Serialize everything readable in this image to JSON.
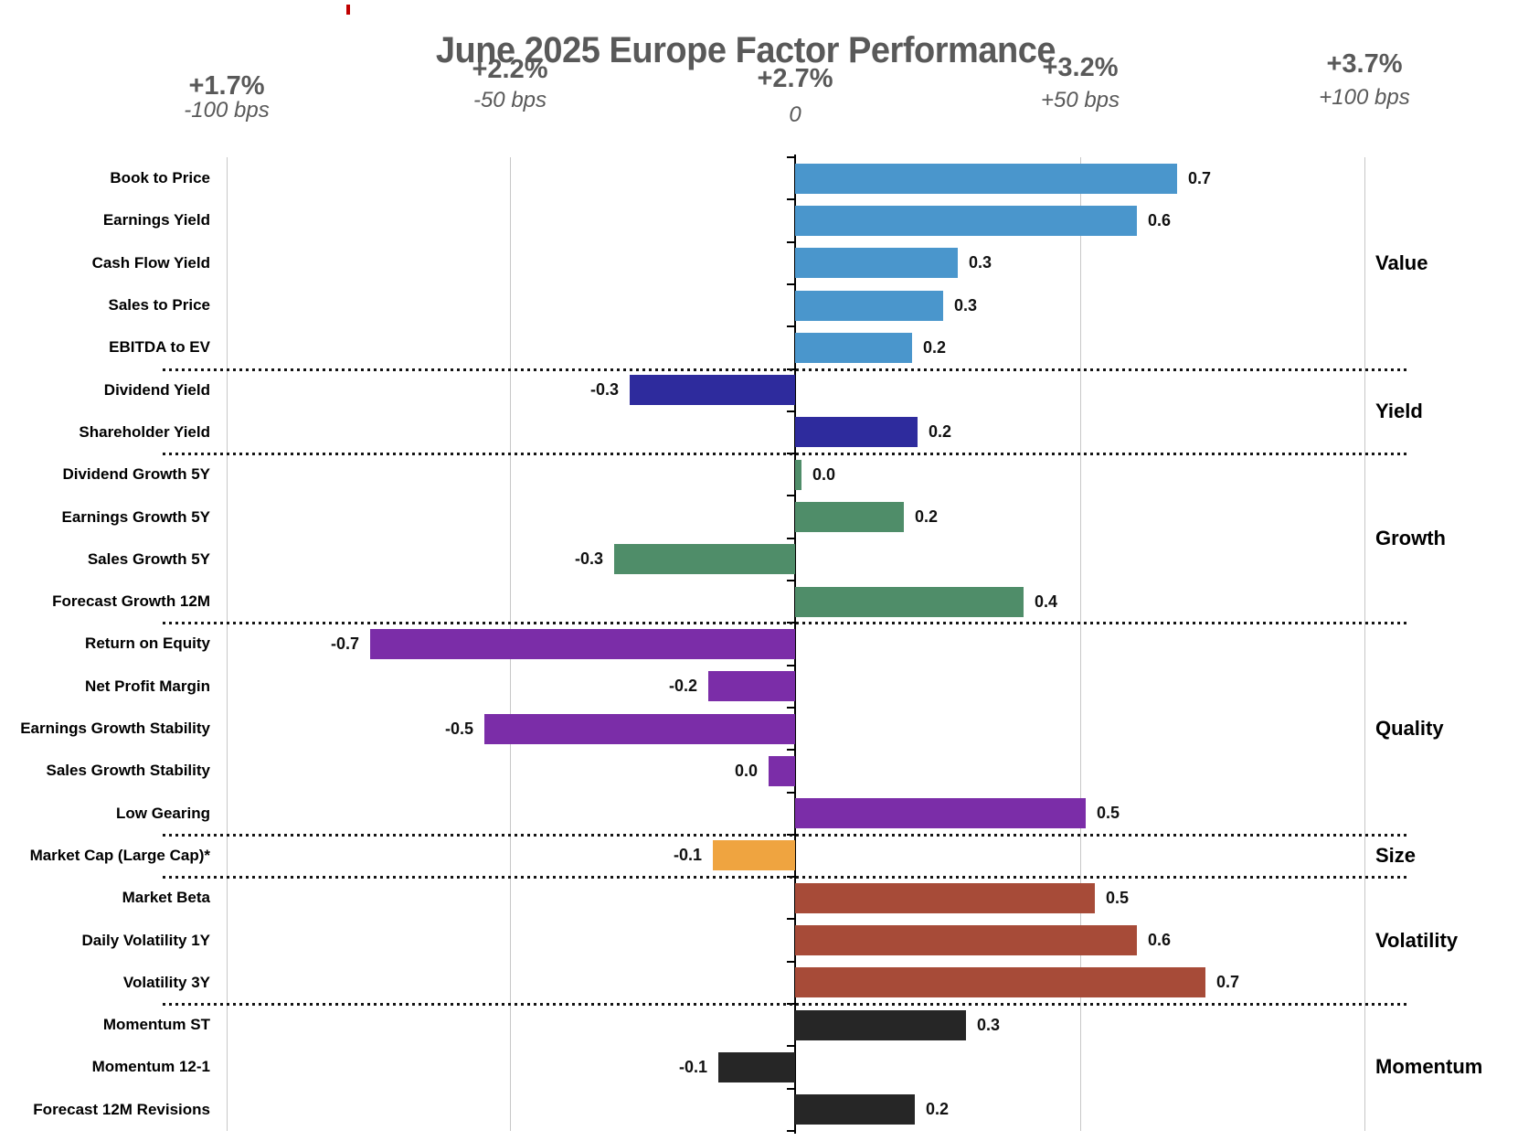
{
  "title": "June 2025 Europe Factor Performance",
  "axis_header": {
    "ticks": [
      {
        "pct": "+1.7%",
        "bps": "-100 bps"
      },
      {
        "pct": "+2.2%",
        "bps": "-50 bps"
      },
      {
        "pct": "+2.7%",
        "bps": "0"
      },
      {
        "pct": "+3.2%",
        "bps": "+50 bps"
      },
      {
        "pct": "+3.7%",
        "bps": "+100 bps"
      }
    ]
  },
  "chart_data": {
    "type": "bar",
    "orientation": "horizontal",
    "title": "June 2025 Europe Factor Performance",
    "x_axis": {
      "tick_labels_pct": [
        "+1.7%",
        "+2.2%",
        "+2.7%",
        "+3.2%",
        "+3.7%"
      ],
      "tick_labels_bps": [
        "-100 bps",
        "-50 bps",
        "0",
        "+50 bps",
        "+100 bps"
      ],
      "range_bps": [
        -100,
        100
      ],
      "gridlines": true
    },
    "value_unit": "percent active return, labels shown to 1 decimal",
    "groups": [
      {
        "category": "Value",
        "color": "#4A96CC",
        "factors": [
          {
            "name": "Book to Price",
            "value": 0.67,
            "display": "0.7"
          },
          {
            "name": "Earnings Yield",
            "value": 0.6,
            "display": "0.6"
          },
          {
            "name": "Cash Flow Yield",
            "value": 0.285,
            "display": "0.3"
          },
          {
            "name": "Sales to Price",
            "value": 0.26,
            "display": "0.3"
          },
          {
            "name": "EBITDA to EV",
            "value": 0.205,
            "display": "0.2"
          }
        ]
      },
      {
        "category": "Yield",
        "color": "#2E2B9D",
        "factors": [
          {
            "name": "Dividend Yield",
            "value": -0.29,
            "display": "-0.3"
          },
          {
            "name": "Shareholder Yield",
            "value": 0.215,
            "display": "0.2"
          }
        ]
      },
      {
        "category": "Growth",
        "color": "#4F8D69",
        "factors": [
          {
            "name": "Dividend Growth 5Y",
            "value": 0.012,
            "display": "0.0"
          },
          {
            "name": "Earnings Growth 5Y",
            "value": 0.19,
            "display": "0.2"
          },
          {
            "name": "Sales Growth 5Y",
            "value": -0.317,
            "display": "-0.3"
          },
          {
            "name": "Forecast Growth 12M",
            "value": 0.4,
            "display": "0.4"
          }
        ]
      },
      {
        "category": "Quality",
        "color": "#7B2DA8",
        "factors": [
          {
            "name": "Return on Equity",
            "value": -0.745,
            "display": "-0.7"
          },
          {
            "name": "Net Profit Margin",
            "value": -0.152,
            "display": "-0.2"
          },
          {
            "name": "Earnings Growth Stability",
            "value": -0.545,
            "display": "-0.5"
          },
          {
            "name": "Sales Growth Stability",
            "value": -0.047,
            "display": "0.0"
          },
          {
            "name": "Low Gearing",
            "value": 0.51,
            "display": "0.5"
          }
        ]
      },
      {
        "category": "Size",
        "color": "#EFA440",
        "factors": [
          {
            "name": "Market Cap (Large Cap)*",
            "value": -0.145,
            "display": "-0.1"
          }
        ]
      },
      {
        "category": "Volatility",
        "color": "#A74B38",
        "factors": [
          {
            "name": "Market Beta",
            "value": 0.525,
            "display": "0.5"
          },
          {
            "name": "Daily Volatility 1Y",
            "value": 0.6,
            "display": "0.6"
          },
          {
            "name": "Volatility 3Y",
            "value": 0.72,
            "display": "0.7"
          }
        ]
      },
      {
        "category": "Momentum",
        "color": "#262626",
        "factors": [
          {
            "name": "Momentum ST",
            "value": 0.3,
            "display": "0.3"
          },
          {
            "name": "Momentum 12-1",
            "value": -0.135,
            "display": "-0.1"
          },
          {
            "name": "Forecast 12M Revisions",
            "value": 0.21,
            "display": "0.2"
          }
        ]
      }
    ]
  },
  "colors": {
    "title_text": "#595959",
    "axis_header_text": "#595959",
    "gridline": "#C7C7C7",
    "zero_axis": "#000000",
    "separator_dots": "#141414",
    "label_text": "#000000",
    "red_mark": "#C00000"
  }
}
